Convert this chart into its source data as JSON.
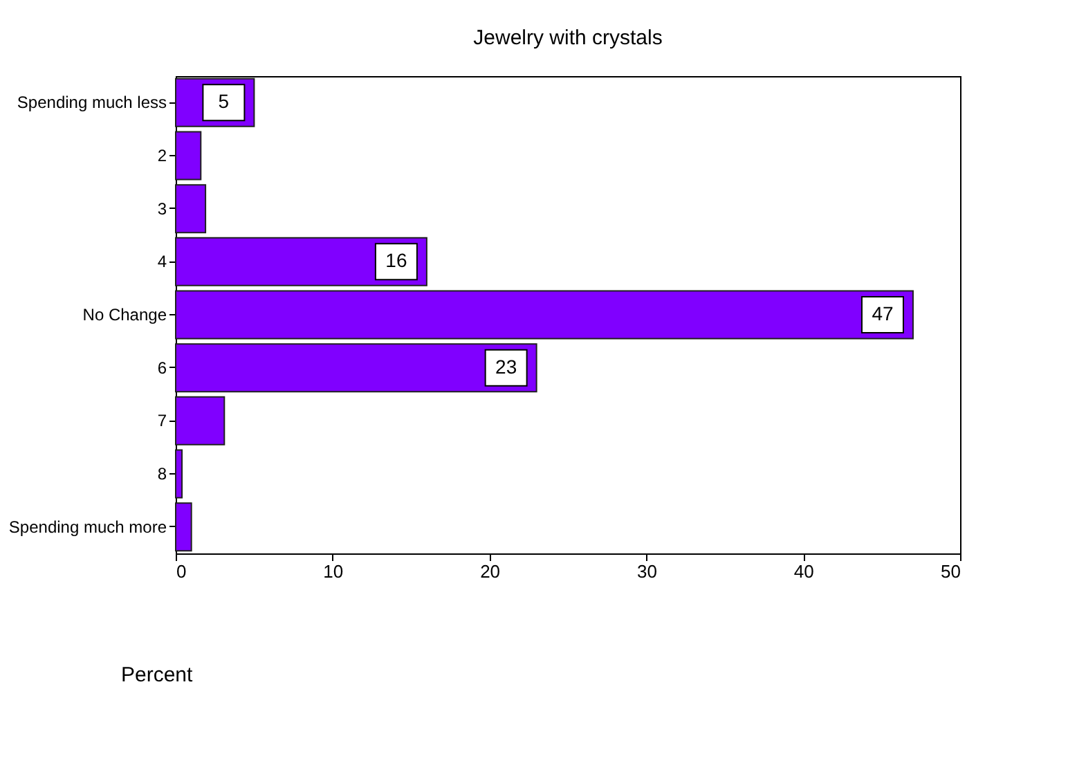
{
  "chart_data": {
    "type": "bar",
    "orientation": "horizontal",
    "title": "Jewelry with crystals",
    "xlabel": "Percent",
    "categories": [
      "Spending much less",
      "2",
      "3",
      "4",
      "No Change",
      "6",
      "7",
      "8",
      "Spending much more"
    ],
    "values": [
      5,
      1.6,
      1.9,
      16,
      47,
      23,
      3.1,
      0.4,
      1.0
    ],
    "value_labels": [
      "5",
      null,
      null,
      "16",
      "47",
      "23",
      null,
      null,
      null
    ],
    "color": "#8000ff",
    "xlim": [
      0,
      50
    ],
    "xticks": [
      0,
      10,
      20,
      30,
      40,
      50
    ],
    "grid": false
  }
}
